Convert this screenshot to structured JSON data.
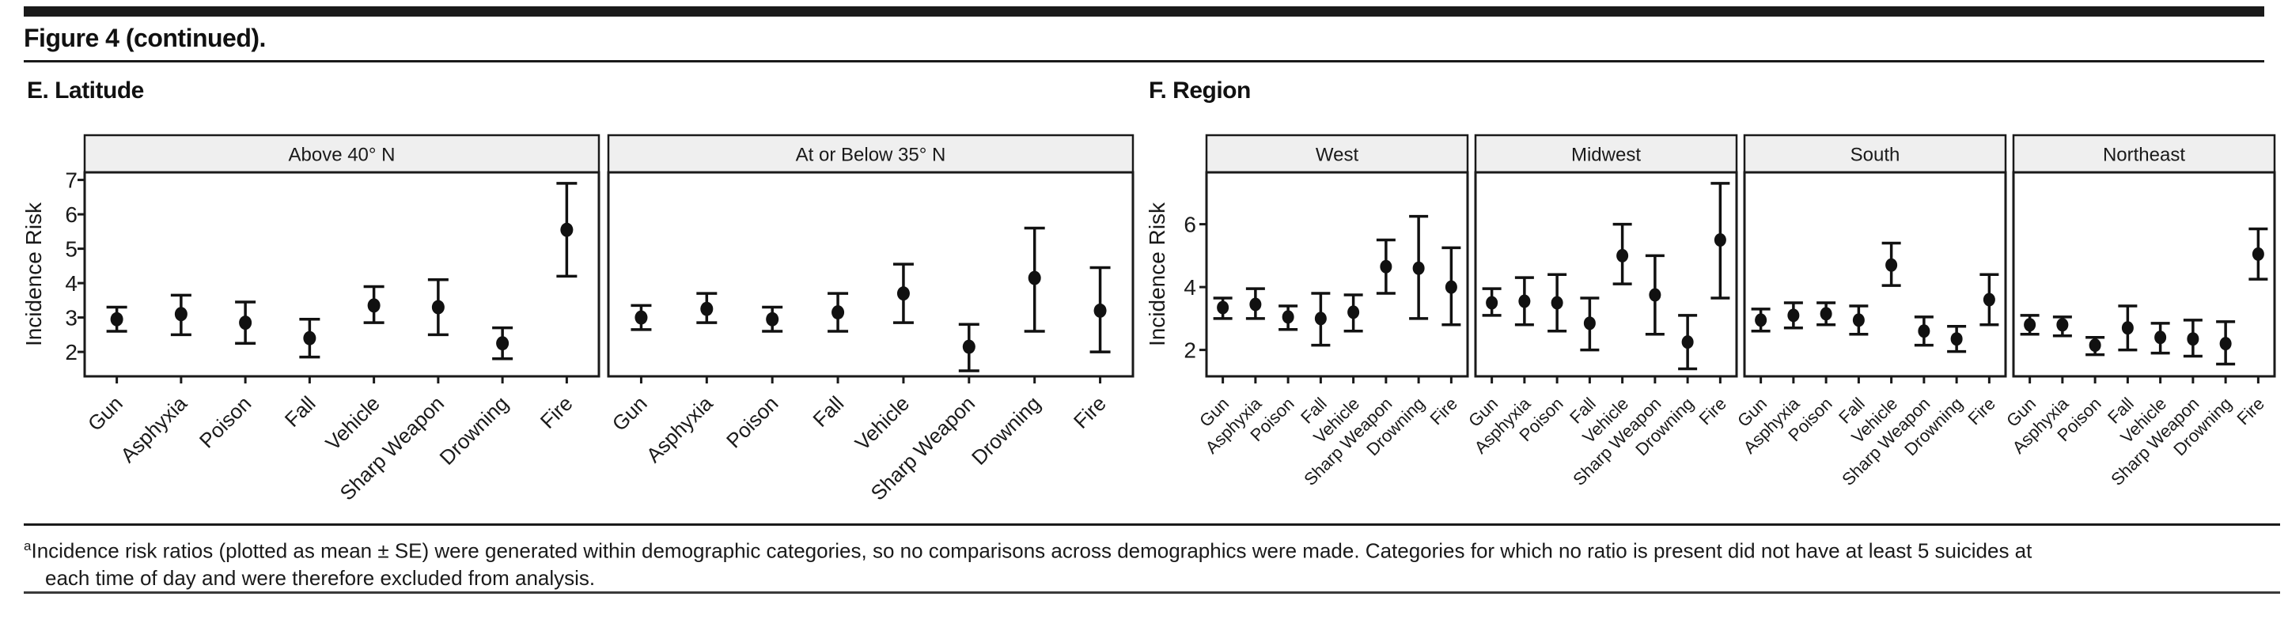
{
  "page": {
    "title": "Figure 4 (continued).",
    "footnote": {
      "marker": "a",
      "lines": [
        "Incidence risk ratios (plotted as mean ± SE) were generated within demographic categories, so no comparisons across demographics were made. Categories for which no ratio is present did not have at least 5 suicides at",
        "each time of day and were therefore excluded from analysis."
      ]
    }
  },
  "chart_data": [
    {
      "id": "latitude",
      "type": "scatter",
      "panel_label": "E. Latitude",
      "ylabel": "Incidence Risk",
      "yticks": [
        2,
        3,
        4,
        5,
        6,
        7
      ],
      "ylim": [
        1.29,
        7.22
      ],
      "grid": false,
      "legend": "none",
      "error_bars": "mean ± SE",
      "categories": [
        "Gun",
        "Asphyxia",
        "Poison",
        "Fall",
        "Vehicle",
        "Sharp Weapon",
        "Drowning",
        "Fire"
      ],
      "facets": [
        {
          "label": "Above 40° N",
          "mean": [
            2.95,
            3.1,
            2.85,
            2.4,
            3.35,
            3.3,
            2.25,
            5.55
          ],
          "lo": [
            2.6,
            2.5,
            2.25,
            1.85,
            2.85,
            2.5,
            1.8,
            4.2
          ],
          "hi": [
            3.3,
            3.65,
            3.45,
            2.95,
            3.9,
            4.1,
            2.7,
            6.9
          ]
        },
        {
          "label": "At or Below 35° N",
          "mean": [
            3.0,
            3.25,
            2.95,
            3.15,
            3.7,
            2.15,
            4.15,
            3.2
          ],
          "lo": [
            2.65,
            2.85,
            2.6,
            2.6,
            2.85,
            1.45,
            2.6,
            2.0
          ],
          "hi": [
            3.35,
            3.7,
            3.3,
            3.7,
            4.55,
            2.8,
            5.6,
            4.45
          ]
        }
      ],
      "colors": {
        "marker": "#111111",
        "header_fill": "#efefef",
        "spine": "#1a1a1a"
      }
    },
    {
      "id": "region",
      "type": "scatter",
      "panel_label": "F. Region",
      "ylabel": "Incidence Risk",
      "yticks": [
        2,
        4,
        6
      ],
      "ylim": [
        1.16,
        7.65
      ],
      "grid": false,
      "legend": "none",
      "error_bars": "mean ± SE",
      "categories": [
        "Gun",
        "Asphyxia",
        "Poison",
        "Fall",
        "Vehicle",
        "Sharp Weapon",
        "Drowning",
        "Fire"
      ],
      "facets": [
        {
          "label": "West",
          "mean": [
            3.35,
            3.45,
            3.05,
            3.0,
            3.2,
            4.65,
            4.6,
            4.0
          ],
          "lo": [
            3.0,
            3.0,
            2.65,
            2.15,
            2.6,
            3.8,
            3.0,
            2.8
          ],
          "hi": [
            3.65,
            3.95,
            3.4,
            3.8,
            3.75,
            5.5,
            6.25,
            5.25
          ]
        },
        {
          "label": "Midwest",
          "mean": [
            3.5,
            3.55,
            3.5,
            2.85,
            5.0,
            3.75,
            2.25,
            5.5
          ],
          "lo": [
            3.1,
            2.8,
            2.6,
            2.0,
            4.1,
            2.5,
            1.4,
            3.65
          ],
          "hi": [
            3.95,
            4.3,
            4.4,
            3.65,
            6.0,
            5.0,
            3.1,
            7.3
          ]
        },
        {
          "label": "South",
          "mean": [
            2.95,
            3.1,
            3.15,
            2.95,
            4.7,
            2.6,
            2.35,
            3.6
          ],
          "lo": [
            2.6,
            2.7,
            2.8,
            2.5,
            4.05,
            2.15,
            1.95,
            2.8
          ],
          "hi": [
            3.3,
            3.5,
            3.5,
            3.4,
            5.4,
            3.05,
            2.75,
            4.4
          ]
        },
        {
          "label": "Northeast",
          "mean": [
            2.8,
            2.8,
            2.15,
            2.7,
            2.4,
            2.35,
            2.2,
            5.05
          ],
          "lo": [
            2.5,
            2.45,
            1.85,
            2.0,
            1.9,
            1.8,
            1.55,
            4.25
          ],
          "hi": [
            3.1,
            3.05,
            2.4,
            3.4,
            2.85,
            2.95,
            2.9,
            5.85
          ]
        }
      ],
      "colors": {
        "marker": "#111111",
        "header_fill": "#efefef",
        "spine": "#1a1a1a"
      }
    }
  ]
}
